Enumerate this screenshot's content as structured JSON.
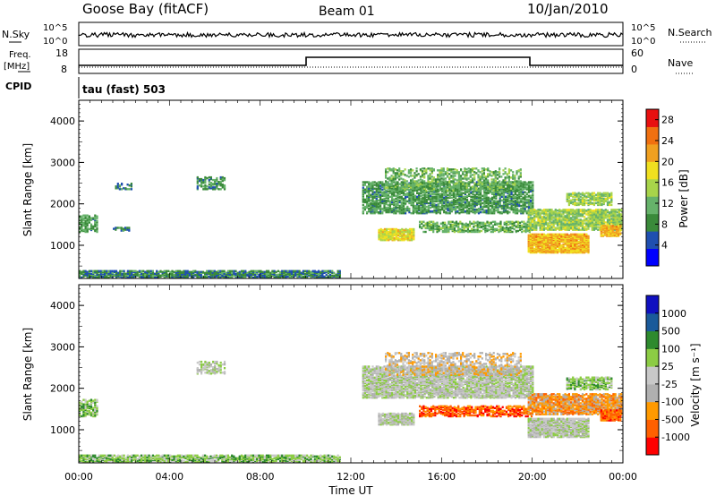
{
  "header": {
    "station": "Goose Bay (fitACF)",
    "beam": "Beam 01",
    "date": "10/Jan/2010"
  },
  "strips": {
    "nsky_label": "N.Sky",
    "nsearch_label": "N.Search",
    "left_ticks_top": [
      "10^5",
      "10^0"
    ],
    "right_ticks_top": [
      "10^5",
      "10^0"
    ],
    "freq_label_1": "Freq.",
    "freq_label_2": "[MHz]",
    "cpid_label": "CPID",
    "nave_label": "Nave",
    "freq_ticks": [
      "18",
      "8"
    ],
    "nave_ticks": [
      "60",
      "0"
    ],
    "cpid_text": "tau (fast) 503"
  },
  "colors": {
    "power_scale": [
      "#0000ff",
      "#1f4fb0",
      "#3a8a3a",
      "#66b26a",
      "#a8d44a",
      "#f0e020",
      "#f0a020",
      "#f07010",
      "#e81010"
    ],
    "velocity_scale": [
      "#ff0000",
      "#ff6000",
      "#ff9a00",
      "#b0b0b0",
      "#c8c8c8",
      "#8ccc44",
      "#2e8a2e",
      "#1a5a9a",
      "#1010c0"
    ],
    "ground_scatter": "#bdbdb5"
  },
  "chart_data": [
    {
      "type": "heatmap",
      "name": "power",
      "ylabel": "Slant Range [km]",
      "xlabel": "Time UT",
      "x_ticks": [
        "00:00",
        "04:00",
        "08:00",
        "12:00",
        "16:00",
        "20:00",
        "00:00"
      ],
      "y_ticks": [
        "1000",
        "2000",
        "3000",
        "4000"
      ],
      "ylim": [
        200,
        4500
      ],
      "colorbar": {
        "label": "Power [dB]",
        "ticks": [
          "4",
          "8",
          "12",
          "16",
          "20",
          "24",
          "28"
        ],
        "range": [
          0,
          30
        ]
      },
      "regions": [
        {
          "t0": 0.0,
          "t1": 11.5,
          "r0": 250,
          "r1": 420,
          "level": 7,
          "density": 0.75
        },
        {
          "t0": 0.0,
          "t1": 0.8,
          "r0": 1350,
          "r1": 1750,
          "level": 9,
          "density": 0.5
        },
        {
          "t0": 1.5,
          "t1": 2.2,
          "r0": 1380,
          "r1": 1460,
          "level": 6,
          "density": 0.5
        },
        {
          "t0": 1.6,
          "t1": 2.3,
          "r0": 2380,
          "r1": 2520,
          "level": 6,
          "density": 0.4
        },
        {
          "t0": 5.2,
          "t1": 6.4,
          "r0": 2380,
          "r1": 2680,
          "level": 8,
          "density": 0.5
        },
        {
          "t0": 12.5,
          "t1": 20.0,
          "r0": 1800,
          "r1": 2550,
          "level": 9,
          "density": 0.6
        },
        {
          "t0": 13.5,
          "t1": 19.5,
          "r0": 2350,
          "r1": 2900,
          "level": 11,
          "density": 0.35
        },
        {
          "t0": 13.2,
          "t1": 14.8,
          "r0": 1150,
          "r1": 1420,
          "level": 18,
          "density": 0.8
        },
        {
          "t0": 15.0,
          "t1": 20.0,
          "r0": 1350,
          "r1": 1600,
          "level": 11,
          "density": 0.5
        },
        {
          "t0": 19.8,
          "t1": 22.5,
          "r0": 850,
          "r1": 1300,
          "level": 21,
          "density": 0.85
        },
        {
          "t0": 19.8,
          "t1": 23.9,
          "r0": 1400,
          "r1": 1900,
          "level": 14,
          "density": 0.7
        },
        {
          "t0": 21.5,
          "t1": 23.5,
          "r0": 2000,
          "r1": 2300,
          "level": 14,
          "density": 0.6
        },
        {
          "t0": 23.0,
          "t1": 23.9,
          "r0": 1250,
          "r1": 1500,
          "level": 22,
          "density": 0.8
        }
      ]
    },
    {
      "type": "heatmap",
      "name": "velocity",
      "ylabel": "Slant Range [km]",
      "xlabel": "Time UT",
      "x_ticks": [
        "00:00",
        "04:00",
        "08:00",
        "12:00",
        "16:00",
        "20:00",
        "00:00"
      ],
      "y_ticks": [
        "1000",
        "2000",
        "3000",
        "4000"
      ],
      "ylim": [
        200,
        4500
      ],
      "colorbar": {
        "label": "Velocity [m s⁻¹]",
        "ticks": [
          "1000",
          "500",
          "100",
          "25",
          "-25",
          "-100",
          "-500",
          "-1000"
        ]
      },
      "regions": [
        {
          "t0": 0.0,
          "t1": 11.5,
          "r0": 250,
          "r1": 420,
          "level": 5,
          "density": 0.7
        },
        {
          "t0": 0.0,
          "t1": 0.8,
          "r0": 1350,
          "r1": 1750,
          "level": 5,
          "density": 0.5
        },
        {
          "t0": 5.2,
          "t1": 6.4,
          "r0": 2380,
          "r1": 2680,
          "level": 4,
          "density": 0.5
        },
        {
          "t0": 12.5,
          "t1": 20.0,
          "r0": 1800,
          "r1": 2550,
          "level": 4,
          "density": 0.75
        },
        {
          "t0": 13.5,
          "t1": 19.5,
          "r0": 2350,
          "r1": 2900,
          "level": 3,
          "density": 0.35
        },
        {
          "t0": 13.2,
          "t1": 14.8,
          "r0": 1150,
          "r1": 1420,
          "level": 4,
          "density": 0.8
        },
        {
          "t0": 15.0,
          "t1": 20.0,
          "r0": 1350,
          "r1": 1600,
          "level": 1,
          "density": 0.5
        },
        {
          "t0": 19.8,
          "t1": 22.5,
          "r0": 850,
          "r1": 1300,
          "level": 4,
          "density": 0.85
        },
        {
          "t0": 19.8,
          "t1": 23.9,
          "r0": 1400,
          "r1": 1900,
          "level": 2,
          "density": 0.7
        },
        {
          "t0": 21.5,
          "t1": 23.5,
          "r0": 2000,
          "r1": 2300,
          "level": 5,
          "density": 0.6
        },
        {
          "t0": 23.0,
          "t1": 23.9,
          "r0": 1250,
          "r1": 1500,
          "level": 1,
          "density": 0.8
        }
      ]
    }
  ]
}
